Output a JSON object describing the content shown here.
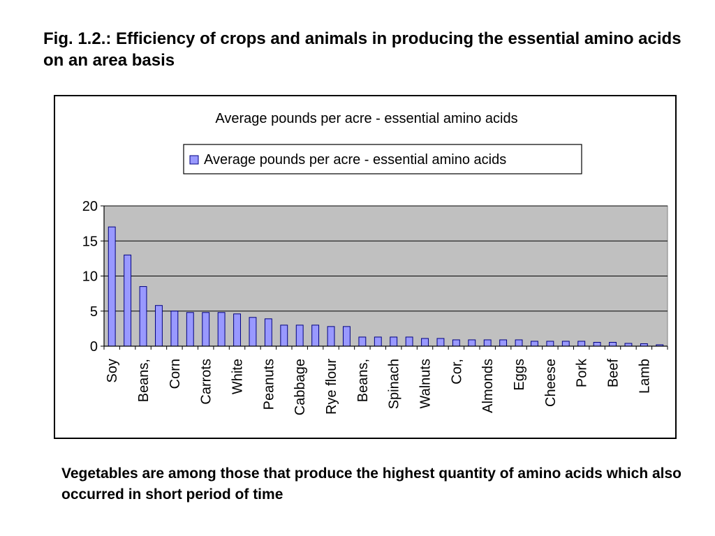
{
  "slide": {
    "title": "Fig. 1.2.: Efficiency of crops and animals in producing the essential amino acids on an area basis",
    "caption": "Vegetables are among those that produce the highest quantity of amino acids which also occurred in short period of time"
  },
  "colors": {
    "bar_fill": "#9999ff",
    "bar_stroke": "#000080",
    "plot_background": "#c0c0c0",
    "gridline": "#000000"
  },
  "chart_data": {
    "type": "bar",
    "title": "Average pounds per acre - essential amino acids",
    "xlabel": "",
    "ylabel": "",
    "ylim": [
      0,
      20
    ],
    "yticks": [
      0,
      5,
      10,
      15,
      20
    ],
    "grid": true,
    "legend": "top",
    "categories": [
      "Soy",
      "",
      "Beans,",
      "",
      "Corn",
      "",
      "Carrots",
      "",
      "White",
      "",
      "Peanuts",
      "",
      "Cabbage",
      "",
      "Rye flour",
      "",
      "Beans,",
      "",
      "Spinach",
      "",
      "Walnuts",
      "",
      "Cor,",
      "",
      "Almonds",
      "",
      "Eggs",
      "",
      "Cheese",
      "",
      "Pork",
      "",
      "Beef",
      "",
      "Lamb",
      ""
    ],
    "series": [
      {
        "name": "Average pounds per acre - essential amino acids",
        "values": [
          17,
          13,
          8.5,
          5.8,
          5,
          4.8,
          4.8,
          4.8,
          4.6,
          4.1,
          3.9,
          3,
          3,
          3,
          2.8,
          2.8,
          1.3,
          1.3,
          1.3,
          1.3,
          1.1,
          1.1,
          0.9,
          0.9,
          0.9,
          0.9,
          0.9,
          0.7,
          0.7,
          0.7,
          0.7,
          0.55,
          0.55,
          0.4,
          0.35,
          0.2
        ]
      }
    ]
  }
}
